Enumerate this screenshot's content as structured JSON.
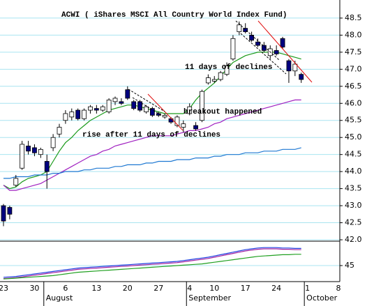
{
  "chart_data": [
    {
      "type": "candlestick",
      "title": "ACWI ( iShares MSCI All Country World Index Fund)",
      "annotations": [
        "11 days of declines",
        "breakout happened",
        "rise after 11 days of declines"
      ],
      "categories": [
        "23",
        null,
        null,
        null,
        null,
        "30",
        null,
        null,
        null,
        null,
        "6",
        null,
        null,
        null,
        null,
        "13",
        null,
        null,
        null,
        null,
        "20",
        null,
        null,
        null,
        null,
        "27",
        null,
        null,
        null,
        null,
        "4",
        null,
        null,
        null,
        "10",
        null,
        null,
        null,
        null,
        "17",
        null,
        null,
        null,
        null,
        "24",
        null,
        null,
        null,
        null,
        "1",
        null,
        null,
        null,
        null,
        "8"
      ],
      "months": [
        {
          "label": "August",
          "at": 7
        },
        {
          "label": "September",
          "at": 30
        },
        {
          "label": "October",
          "at": 49
        }
      ],
      "candles": {
        "up_color": "#ffffff",
        "down_color": "#000080",
        "open": [
          43.0,
          42.95,
          43.6,
          44.1,
          44.75,
          44.7,
          44.5,
          44.3,
          44.7,
          45.1,
          45.5,
          45.6,
          45.8,
          45.55,
          45.8,
          45.85,
          45.8,
          45.75,
          46.05,
          46.05,
          46.4,
          46.05,
          46.05,
          45.75,
          45.85,
          45.7,
          45.6,
          45.55,
          45.35,
          45.3,
          45.7,
          45.35,
          45.5,
          46.6,
          46.65,
          46.7,
          46.85,
          47.3,
          48.1,
          48.2,
          48.0,
          47.8,
          47.7,
          47.4,
          47.55,
          47.9,
          47.25,
          46.95,
          46.85,
          null,
          null,
          null,
          null,
          null,
          null
        ],
        "high": [
          43.05,
          43.0,
          43.9,
          44.9,
          44.9,
          44.8,
          44.7,
          44.5,
          45.1,
          45.4,
          45.8,
          45.85,
          45.85,
          45.85,
          45.95,
          45.95,
          45.95,
          46.15,
          46.2,
          46.15,
          46.5,
          46.1,
          46.1,
          45.95,
          45.9,
          45.75,
          45.7,
          45.6,
          45.65,
          45.5,
          46.0,
          45.45,
          46.4,
          46.85,
          46.8,
          46.95,
          47.2,
          48.0,
          48.4,
          48.35,
          48.1,
          47.9,
          47.8,
          47.7,
          47.7,
          47.95,
          47.3,
          47.25,
          46.9,
          null,
          null,
          null,
          null,
          null,
          null
        ],
        "low": [
          42.4,
          42.6,
          43.55,
          44.05,
          44.5,
          44.45,
          44.4,
          43.5,
          44.6,
          45.0,
          45.4,
          45.5,
          45.5,
          45.5,
          45.7,
          45.7,
          45.75,
          45.7,
          45.95,
          45.95,
          46.1,
          45.8,
          45.75,
          45.7,
          45.6,
          45.6,
          45.55,
          45.4,
          45.3,
          45.15,
          45.65,
          45.2,
          45.45,
          46.55,
          46.6,
          46.65,
          46.8,
          47.25,
          48.0,
          48.05,
          47.8,
          47.65,
          47.5,
          47.3,
          47.4,
          47.6,
          46.6,
          46.8,
          46.6,
          null,
          null,
          null,
          null,
          null,
          null
        ],
        "close": [
          42.55,
          42.75,
          43.8,
          44.8,
          44.6,
          44.55,
          44.65,
          44.0,
          45.0,
          45.3,
          45.7,
          45.75,
          45.55,
          45.8,
          45.9,
          45.8,
          45.9,
          46.1,
          46.15,
          46.0,
          46.15,
          45.85,
          45.8,
          45.9,
          45.65,
          45.65,
          45.65,
          45.45,
          45.6,
          45.4,
          45.9,
          45.25,
          46.35,
          46.75,
          46.7,
          46.9,
          47.1,
          47.9,
          48.3,
          48.1,
          47.85,
          47.7,
          47.55,
          47.6,
          47.45,
          47.65,
          46.95,
          47.15,
          46.7,
          null,
          null,
          null,
          null,
          null,
          null
        ]
      },
      "series": [
        {
          "color": "#1a9a1a",
          "values": [
            43.6,
            43.5,
            43.55,
            43.7,
            43.8,
            43.85,
            43.9,
            44.0,
            44.3,
            44.6,
            44.85,
            45.0,
            45.2,
            45.35,
            45.5,
            45.6,
            45.7,
            45.8,
            45.85,
            45.9,
            45.95,
            45.95,
            45.9,
            45.85,
            45.8,
            45.75,
            45.7,
            45.7,
            45.7,
            45.7,
            45.85,
            46.1,
            46.3,
            46.45,
            46.6,
            46.8,
            47.0,
            47.2,
            47.3,
            47.4,
            47.45,
            47.5,
            47.5,
            47.5,
            47.5,
            47.45,
            47.4,
            47.35,
            47.3,
            null,
            null,
            null,
            null,
            null,
            null
          ]
        },
        {
          "color": "#a020c0",
          "values": [
            43.6,
            43.45,
            43.45,
            43.5,
            43.55,
            43.6,
            43.65,
            43.75,
            43.85,
            43.95,
            44.05,
            44.15,
            44.25,
            44.35,
            44.45,
            44.5,
            44.6,
            44.65,
            44.75,
            44.8,
            44.85,
            44.9,
            44.95,
            45.0,
            45.05,
            45.05,
            45.05,
            45.05,
            45.1,
            45.15,
            45.2,
            45.2,
            45.25,
            45.3,
            45.4,
            45.45,
            45.55,
            45.6,
            45.65,
            45.7,
            45.75,
            45.8,
            45.85,
            45.9,
            45.95,
            46.0,
            46.05,
            46.1,
            46.1,
            null,
            null,
            null,
            null,
            null,
            null
          ]
        },
        {
          "color": "#1e78d2",
          "values": [
            43.8,
            43.8,
            43.85,
            43.85,
            43.85,
            43.9,
            43.9,
            43.9,
            43.95,
            43.95,
            44.0,
            44.0,
            44.0,
            44.05,
            44.05,
            44.1,
            44.1,
            44.1,
            44.15,
            44.15,
            44.2,
            44.2,
            44.2,
            44.25,
            44.25,
            44.3,
            44.3,
            44.3,
            44.35,
            44.35,
            44.35,
            44.4,
            44.4,
            44.4,
            44.45,
            44.45,
            44.5,
            44.5,
            44.5,
            44.55,
            44.55,
            44.55,
            44.6,
            44.6,
            44.6,
            44.65,
            44.65,
            44.65,
            44.7,
            null,
            null,
            null,
            null,
            null,
            null
          ]
        }
      ],
      "ylim": [
        41.98,
        49.03
      ],
      "yticks": [
        48.5,
        {
          "value": 48,
          "label": "48.0"
        },
        47.5,
        {
          "value": 47,
          "label": "47.0"
        },
        46.5,
        {
          "value": 46,
          "label": "46.0"
        },
        45.5,
        {
          "value": 45,
          "label": "45.0"
        },
        44.5,
        {
          "value": 44,
          "label": "44.0"
        },
        43.5,
        {
          "value": 43,
          "label": "43.0"
        },
        42.5,
        {
          "value": 42,
          "label": "42.0"
        }
      ],
      "grid": true
    },
    {
      "type": "line",
      "series": [
        {
          "color": "#2040e0",
          "values": [
            42.2,
            42.3,
            42.4,
            42.6,
            42.8,
            43.0,
            43.2,
            43.4,
            43.6,
            43.8,
            44.0,
            44.2,
            44.4,
            44.5,
            44.6,
            44.7,
            44.8,
            44.9,
            45.0,
            45.1,
            45.2,
            45.3,
            45.4,
            45.5,
            45.6,
            45.7,
            45.8,
            45.9,
            46.0,
            46.2,
            46.4,
            46.6,
            46.8,
            47.0,
            47.3,
            47.6,
            47.9,
            48.2,
            48.5,
            48.8,
            49.0,
            49.2,
            49.3,
            49.3,
            49.3,
            49.2,
            49.2,
            49.1,
            49.1,
            null,
            null,
            null,
            null,
            null,
            null
          ]
        },
        {
          "color": "#a020a0",
          "values": [
            41.9,
            42.0,
            42.1,
            42.3,
            42.5,
            42.7,
            42.9,
            43.1,
            43.3,
            43.5,
            43.7,
            43.9,
            44.1,
            44.2,
            44.3,
            44.4,
            44.5,
            44.6,
            44.7,
            44.8,
            44.9,
            45.0,
            45.1,
            45.2,
            45.3,
            45.4,
            45.5,
            45.6,
            45.7,
            45.9,
            46.1,
            46.3,
            46.5,
            46.7,
            47.0,
            47.3,
            47.6,
            47.9,
            48.2,
            48.5,
            48.7,
            48.9,
            49.0,
            49.0,
            49.0,
            48.9,
            48.9,
            48.8,
            48.8,
            null,
            null,
            null,
            null,
            null,
            null
          ]
        },
        {
          "color": "#20a020",
          "values": [
            41.8,
            41.9,
            42.0,
            42.1,
            42.2,
            42.3,
            42.4,
            42.5,
            42.6,
            42.8,
            43.0,
            43.2,
            43.4,
            43.5,
            43.6,
            43.7,
            43.8,
            43.9,
            44.0,
            44.1,
            44.2,
            44.3,
            44.4,
            44.5,
            44.6,
            44.7,
            44.8,
            44.9,
            45.0,
            45.1,
            45.2,
            45.3,
            45.4,
            45.6,
            45.8,
            46.0,
            46.2,
            46.4,
            46.6,
            46.8,
            47.0,
            47.2,
            47.3,
            47.4,
            47.5,
            47.6,
            47.6,
            47.7,
            47.7,
            null,
            null,
            null,
            null,
            null,
            null
          ]
        }
      ],
      "ylim": [
        41.5,
        50.5
      ],
      "yticks": [
        45
      ],
      "grid": true
    }
  ]
}
